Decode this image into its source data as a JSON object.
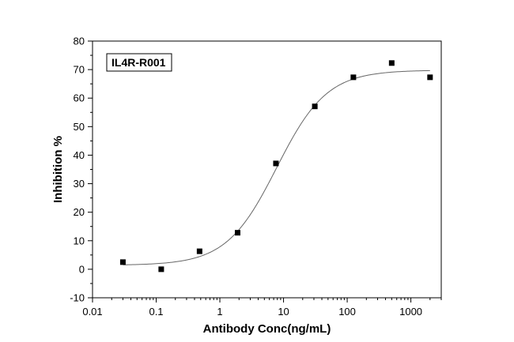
{
  "chart_data": {
    "type": "scatter",
    "xscale": "log",
    "xlim": [
      0.01,
      3000
    ],
    "ylim": [
      -10,
      80
    ],
    "xlabel": "Antibody Conc(ng/mL)",
    "ylabel": "Inhibition %",
    "x_ticks": [
      "0.01",
      "0.1",
      "1",
      "10",
      "100",
      "1000"
    ],
    "y_ticks": [
      "-10",
      "0",
      "10",
      "20",
      "30",
      "40",
      "50",
      "60",
      "70",
      "80"
    ],
    "legend": {
      "label": "IL4R-R001",
      "position": "top-left"
    },
    "series": [
      {
        "name": "IL4R-R001",
        "x": [
          0.03,
          0.12,
          0.48,
          1.9,
          7.6,
          31,
          125,
          500,
          2000
        ],
        "y": [
          2.5,
          0,
          6.3,
          12.8,
          37.1,
          57.1,
          67.3,
          72.3,
          67.3
        ]
      }
    ],
    "fit": {
      "type": "four-parameter logistic",
      "bottom": 1.4,
      "top": 69.8,
      "ec50": 7.8,
      "hill": 1.1
    },
    "colors": {
      "markers": "#000000",
      "fit_line": "#666666",
      "axes": "#000000"
    }
  }
}
